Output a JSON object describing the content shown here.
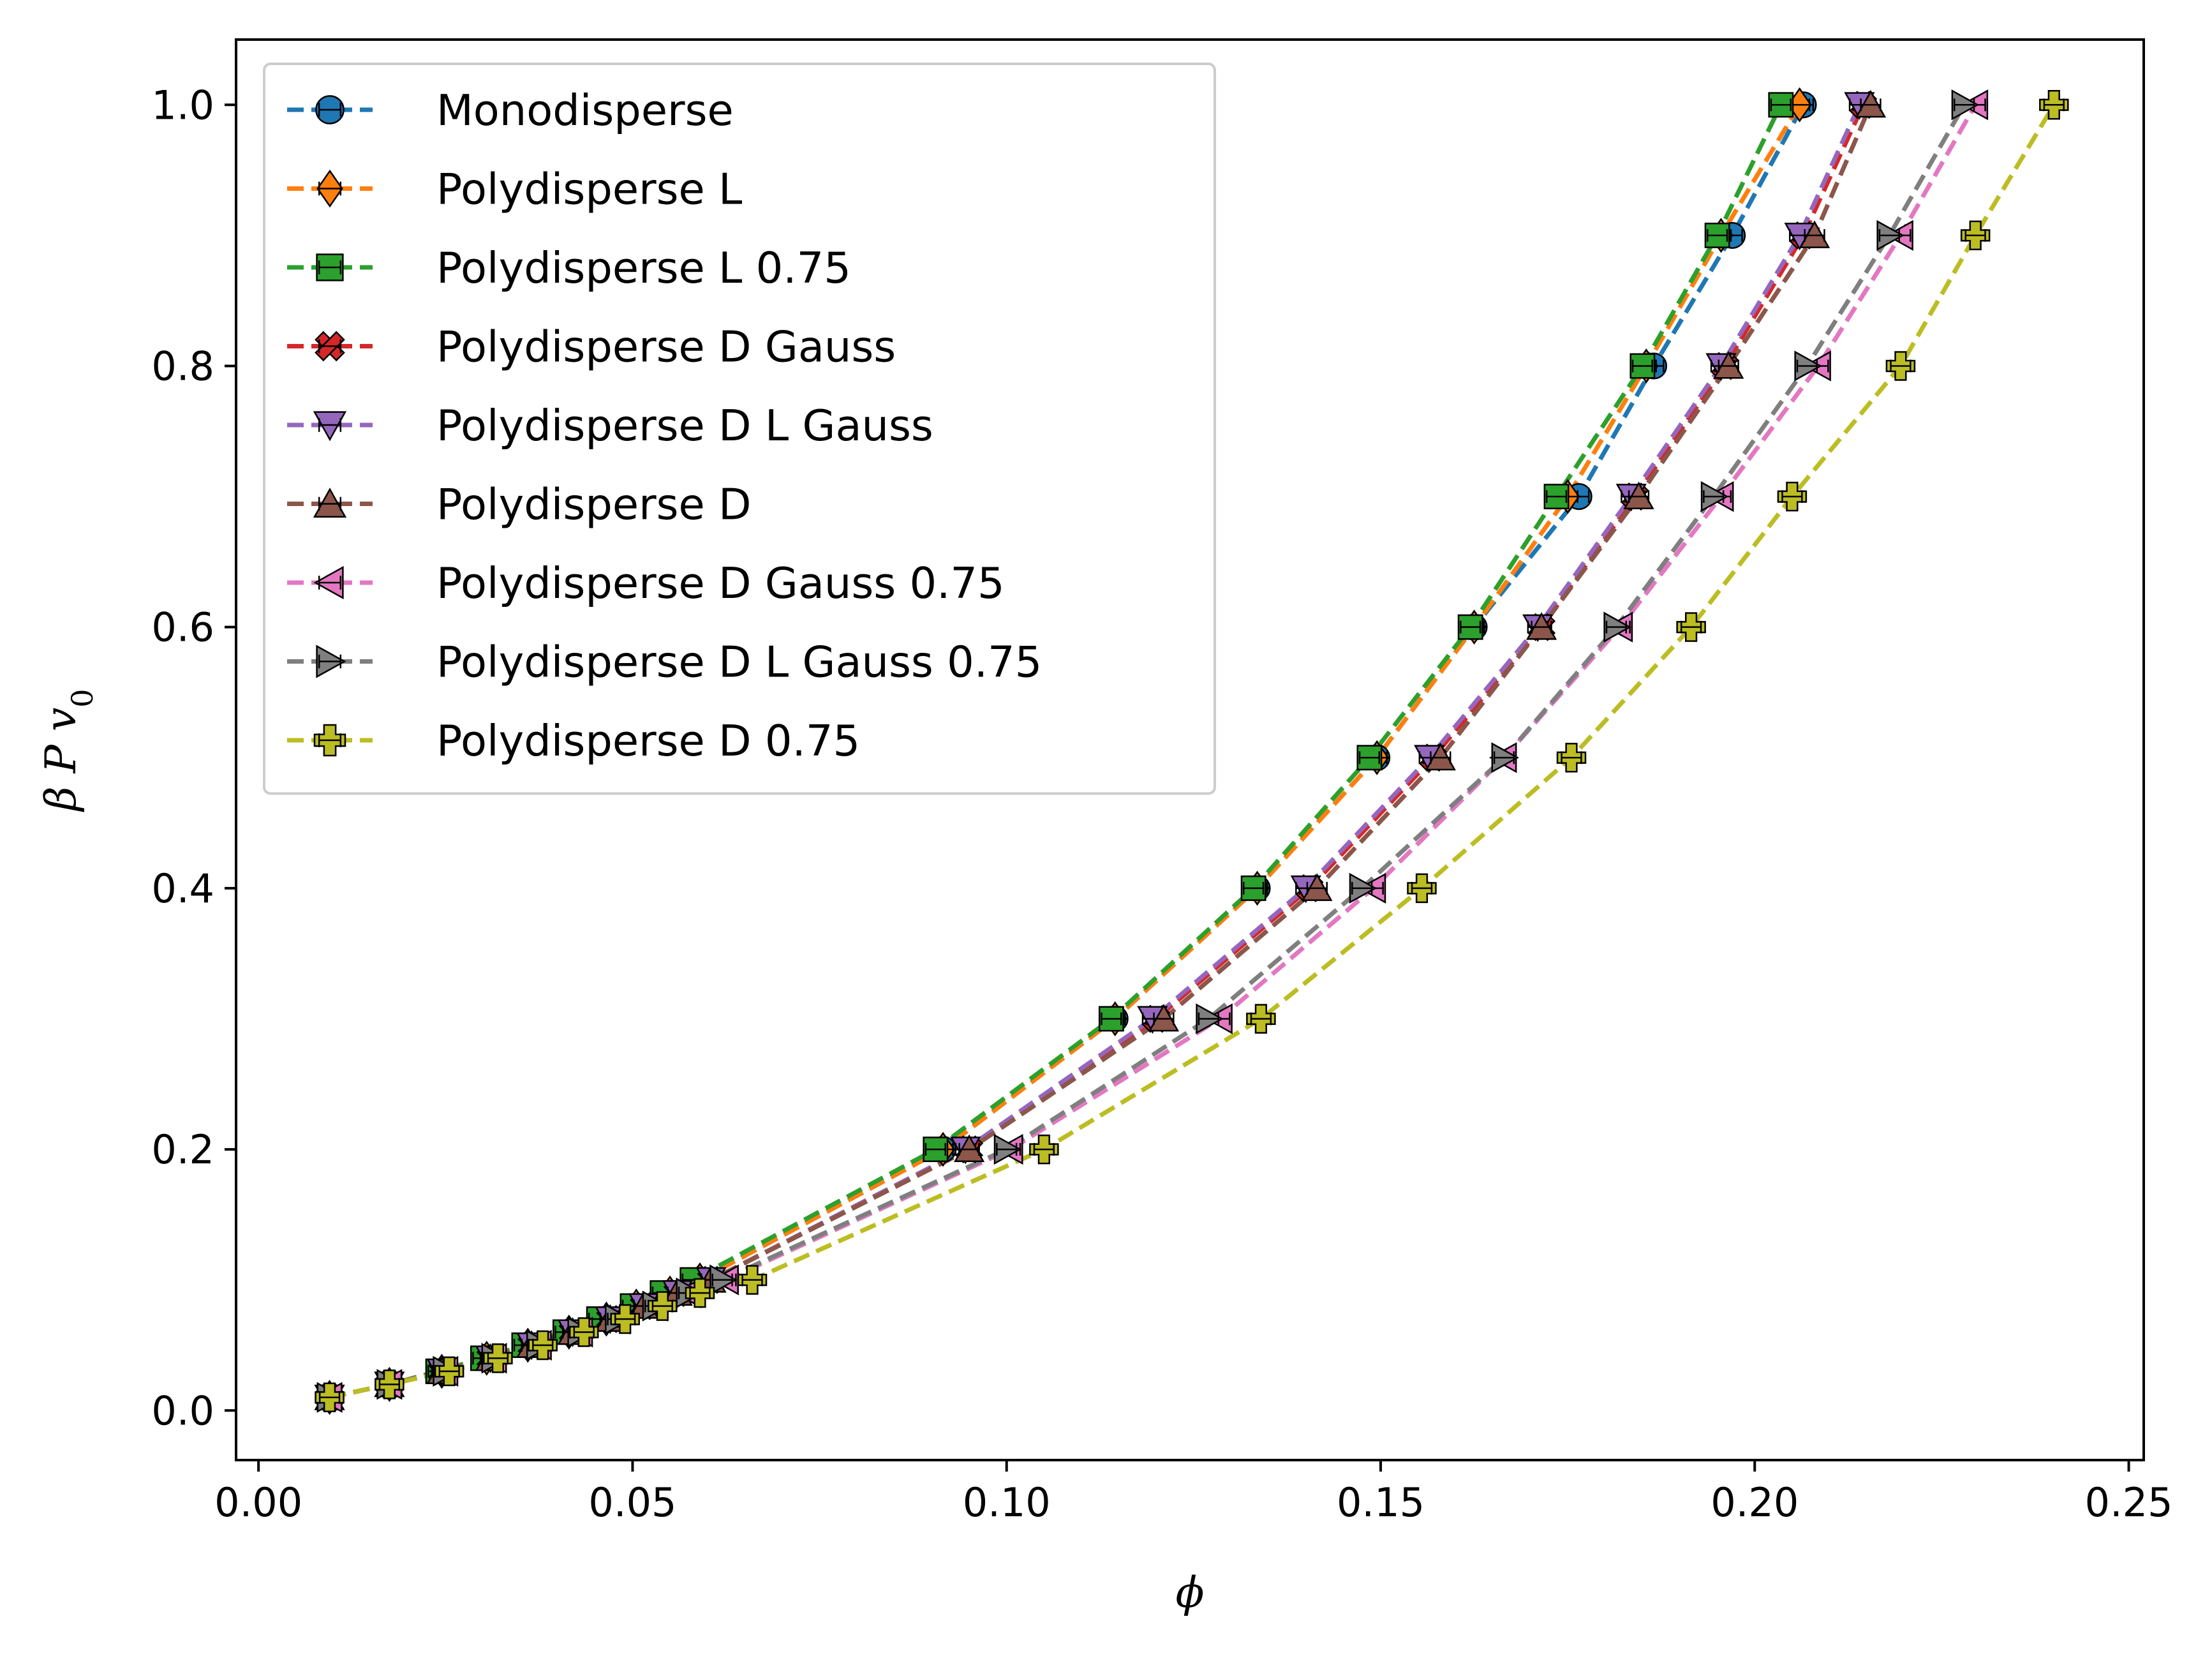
{
  "chart_data": {
    "type": "line",
    "title": "",
    "xlabel": "ϕ",
    "ylabel": "β P v0",
    "ylabel_parts": {
      "main": "β P v",
      "sub": "0"
    },
    "xlim": [
      -0.003,
      0.252
    ],
    "ylim": [
      -0.038,
      1.05
    ],
    "xticks": [
      0.0,
      0.05,
      0.1,
      0.15,
      0.2,
      0.25
    ],
    "xtick_labels": [
      "0.00",
      "0.05",
      "0.10",
      "0.15",
      "0.20",
      "0.25"
    ],
    "yticks": [
      0.0,
      0.2,
      0.4,
      0.6,
      0.8,
      1.0
    ],
    "ytick_labels": [
      "0.0",
      "0.2",
      "0.4",
      "0.6",
      "0.8",
      "1.0"
    ],
    "grid": false,
    "legend_position": "top-left",
    "y": [
      0.01,
      0.02,
      0.03,
      0.04,
      0.05,
      0.06,
      0.07,
      0.08,
      0.09,
      0.1,
      0.2,
      0.3,
      0.4,
      0.5,
      0.6,
      0.7,
      0.8,
      0.9,
      1.0
    ],
    "series": [
      {
        "name": "Monodisperse",
        "color": "#1f77b4",
        "marker": "circle",
        "x": [
          0.0095,
          0.0175,
          0.0245,
          0.0305,
          0.036,
          0.0415,
          0.0465,
          0.0505,
          0.055,
          0.059,
          0.0915,
          0.1145,
          0.1335,
          0.1495,
          0.1625,
          0.1765,
          0.1865,
          0.197,
          0.2065
        ]
      },
      {
        "name": "Polydisperse L",
        "color": "#ff7f0e",
        "marker": "diamond",
        "x": [
          0.0095,
          0.0175,
          0.0245,
          0.0305,
          0.036,
          0.0415,
          0.0465,
          0.0505,
          0.055,
          0.059,
          0.0915,
          0.1145,
          0.1335,
          0.1495,
          0.1625,
          0.175,
          0.1855,
          0.1955,
          0.206
        ]
      },
      {
        "name": "Polydisperse L 0.75",
        "color": "#2ca02c",
        "marker": "square",
        "x": [
          0.0095,
          0.0175,
          0.024,
          0.03,
          0.0355,
          0.041,
          0.0455,
          0.05,
          0.054,
          0.058,
          0.0905,
          0.114,
          0.133,
          0.1485,
          0.162,
          0.1735,
          0.185,
          0.195,
          0.2035
        ]
      },
      {
        "name": "Polydisperse D Gauss",
        "color": "#d62728",
        "marker": "x",
        "x": [
          0.0095,
          0.0175,
          0.0245,
          0.031,
          0.0365,
          0.042,
          0.047,
          0.0515,
          0.056,
          0.0605,
          0.095,
          0.12,
          0.1405,
          0.157,
          0.1715,
          0.184,
          0.196,
          0.2065,
          0.2145
        ]
      },
      {
        "name": "Polydisperse D L Gauss",
        "color": "#9467bd",
        "marker": "triangle-down",
        "x": [
          0.0095,
          0.0175,
          0.0245,
          0.031,
          0.0365,
          0.042,
          0.047,
          0.0515,
          0.056,
          0.0605,
          0.0945,
          0.1195,
          0.14,
          0.1565,
          0.171,
          0.1835,
          0.1955,
          0.206,
          0.214
        ]
      },
      {
        "name": "Polydisperse D",
        "color": "#8c564b",
        "marker": "triangle-up",
        "x": [
          0.0095,
          0.0175,
          0.0245,
          0.031,
          0.0365,
          0.042,
          0.047,
          0.0515,
          0.056,
          0.0605,
          0.095,
          0.121,
          0.1415,
          0.158,
          0.1715,
          0.1845,
          0.1965,
          0.208,
          0.2155
        ]
      },
      {
        "name": "Polydisperse D Gauss 0.75",
        "color": "#e377c2",
        "marker": "triangle-left",
        "x": [
          0.0095,
          0.0175,
          0.025,
          0.0315,
          0.0375,
          0.043,
          0.048,
          0.053,
          0.0575,
          0.0625,
          0.1005,
          0.1285,
          0.149,
          0.1665,
          0.182,
          0.1955,
          0.2085,
          0.2195,
          0.2295
        ]
      },
      {
        "name": "Polydisperse D L Gauss 0.75",
        "color": "#7f7f7f",
        "marker": "triangle-right",
        "x": [
          0.0095,
          0.0175,
          0.025,
          0.0315,
          0.0375,
          0.043,
          0.048,
          0.053,
          0.0575,
          0.062,
          0.1,
          0.127,
          0.1475,
          0.1665,
          0.1815,
          0.1945,
          0.207,
          0.218,
          0.228
        ]
      },
      {
        "name": "Polydisperse D 0.75",
        "color": "#bcbd22",
        "marker": "plus",
        "x": [
          0.0095,
          0.0175,
          0.0255,
          0.032,
          0.038,
          0.0435,
          0.049,
          0.054,
          0.059,
          0.066,
          0.105,
          0.134,
          0.1555,
          0.1755,
          0.1915,
          0.205,
          0.2195,
          0.2295,
          0.24
        ]
      }
    ]
  }
}
